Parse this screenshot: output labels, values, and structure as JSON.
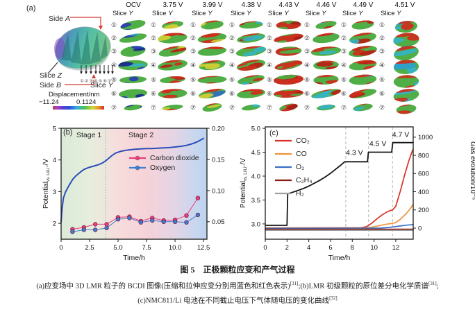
{
  "panel_a": {
    "label": "(a)",
    "side_prefix": "Side",
    "side_a_axis": "A",
    "side_b_axis": "B",
    "slice_prefix": "Slice",
    "slice_z_axis": "Z",
    "slice_y_axis": "Y",
    "displacement_label": "Displacement/nm",
    "colorbar": {
      "min": "−11.24",
      "max": "0.1124"
    },
    "row_markers": [
      "①",
      "②",
      "③",
      "④",
      "⑤",
      "⑥",
      "⑦"
    ],
    "columns": [
      {
        "voltage": "OCV",
        "base": "#4fae45",
        "patches": [
          "#2b3db4",
          "#18268e",
          "#35b3c6",
          "#2b3db4"
        ]
      },
      {
        "voltage": "3.75 V",
        "base": "#4fae45",
        "patches": [
          "#cf2c1c",
          "#b92013",
          "#d2cf35"
        ]
      },
      {
        "voltage": "3.99 V",
        "base": "#4fae45",
        "patches": [
          "#cf2c1c",
          "#2b6fc0",
          "#d2cf35"
        ]
      },
      {
        "voltage": "4.38 V",
        "base": "#4fae45",
        "patches": [
          "#cf2c1c",
          "#35b3c6",
          "#b92013"
        ]
      },
      {
        "voltage": "4.43 V",
        "base": "#c8301f",
        "patches": [
          "#4fae45",
          "#a31d12",
          "#cf2c1c"
        ]
      },
      {
        "voltage": "4.46 V",
        "base": "#4fae45",
        "patches": [
          "#cf2c1c",
          "#35b3c6",
          "#b92013"
        ]
      },
      {
        "voltage": "4.49 V",
        "base": "#4fae45",
        "patches": [
          "#cf2c1c",
          "#b92013",
          "#35b3c6"
        ]
      },
      {
        "voltage": "4.51 V",
        "base": "#4fae45",
        "patches": [
          "#cf2c1c",
          "#35b3c6",
          "#2b9fd0"
        ]
      }
    ]
  },
  "panel_b": {
    "label": "(b)",
    "stage1": "Stage 1",
    "stage2": "Stage 2",
    "xlabel": "Time/h",
    "ylabel_main": "Potential",
    "ylabel_sub": "vs. Li/Li⁺",
    "ylabel_unit": "/V",
    "divider_color": "#8fd8dc",
    "legend": [
      {
        "label": "Carbon dioxide",
        "color": "#e8417e"
      },
      {
        "label": "Oxygen",
        "color": "#3f7fd2"
      }
    ]
  },
  "panel_c": {
    "label": "(c)",
    "xlabel": "Time/h",
    "ylabel_main": "Potential",
    "ylabel_sub": "vs. Li/Li⁺",
    "ylabel_unit": "/V",
    "ylabel_right": "Gas evolution/10⁻⁶",
    "legend": [
      {
        "label": "CO₂",
        "color": "#d93025"
      },
      {
        "label": "CO",
        "color": "#f0913a"
      },
      {
        "label": "O₂",
        "color": "#3a6fc4"
      },
      {
        "label": "C₂H₄",
        "color": "#8b1a10"
      },
      {
        "label": "H₂",
        "color": "#9e9e9e"
      }
    ]
  },
  "chart_data": [
    {
      "id": "b",
      "type": "line",
      "xlabel": "Time/h",
      "xlim": [
        0,
        12.8
      ],
      "x_ticks": [
        0,
        2.5,
        5,
        7.5,
        10,
        12.5
      ],
      "x_tick_labels": [
        "0",
        "2.5",
        "5.0",
        "7.5",
        "10.0",
        "12.5"
      ],
      "ylim_left": [
        1.5,
        5
      ],
      "yleft_ticks": [
        2,
        3,
        4,
        5
      ],
      "yleft_tick_labels": [
        "2",
        "3",
        "4",
        "5"
      ],
      "ylim_right": [
        0.022,
        0.2
      ],
      "yright_ticks": [
        0.05,
        0.1,
        0.15,
        0.2
      ],
      "yright_tick_labels": [
        "0.05",
        "0.10",
        "0.15",
        "0.20"
      ],
      "stage_divider_x": 3.9,
      "legend_position": "center-right",
      "series": [
        {
          "name": "Potential",
          "axis": "left",
          "color": "#2b4db8",
          "width": 2,
          "marker": false,
          "x": [
            0,
            0.08,
            0.2,
            0.4,
            0.7,
            1,
            1.3,
            1.7,
            2,
            2.4,
            2.8,
            3.2,
            3.6,
            3.9,
            4.2,
            4.5,
            4.8,
            5.2,
            5.6,
            6,
            6.5,
            7,
            7.5,
            8,
            8.5,
            9,
            9.5,
            10,
            10.5,
            11,
            11.4,
            11.8,
            12.1,
            12.5
          ],
          "y": [
            2.05,
            2.45,
            2.8,
            3.0,
            3.2,
            3.38,
            3.5,
            3.62,
            3.7,
            3.76,
            3.8,
            3.84,
            3.9,
            3.97,
            4.06,
            4.15,
            4.22,
            4.27,
            4.3,
            4.32,
            4.34,
            4.35,
            4.36,
            4.36,
            4.37,
            4.38,
            4.39,
            4.41,
            4.43,
            4.46,
            4.5,
            4.55,
            4.6,
            4.68
          ]
        },
        {
          "name": "Carbon dioxide",
          "axis": "right",
          "color": "#e8417e",
          "width": 1,
          "marker": true,
          "x": [
            1,
            2,
            3,
            4,
            5,
            6,
            7,
            8,
            9,
            10,
            11,
            12
          ],
          "y": [
            0.038,
            0.041,
            0.046,
            0.046,
            0.057,
            0.058,
            0.051,
            0.056,
            0.052,
            0.053,
            0.06,
            0.088
          ]
        },
        {
          "name": "Oxygen",
          "axis": "right",
          "color": "#3f7fd2",
          "width": 1,
          "marker": true,
          "x": [
            1,
            2,
            3,
            4,
            5,
            6,
            7,
            8,
            9,
            10,
            11,
            12
          ],
          "y": [
            0.034,
            0.037,
            0.037,
            0.04,
            0.054,
            0.056,
            0.049,
            0.052,
            0.05,
            0.05,
            0.049,
            0.061
          ]
        }
      ]
    },
    {
      "id": "c",
      "type": "line",
      "xlabel": "Time/h",
      "xlim": [
        0,
        13.6
      ],
      "x_ticks": [
        0,
        2,
        4,
        6,
        8,
        10,
        12
      ],
      "x_tick_labels": [
        "0",
        "2",
        "4",
        "6",
        "8",
        "10",
        "12"
      ],
      "ylim_left": [
        2.68,
        5.03
      ],
      "yleft_ticks": [
        3,
        3.5,
        4,
        4.5,
        5
      ],
      "yleft_tick_labels": [
        "3.0",
        "3.5",
        "4.0",
        "4.5",
        "5.0"
      ],
      "ylim_right": [
        -122,
        1113
      ],
      "yright_ticks": [
        0,
        200,
        400,
        600,
        800,
        1000
      ],
      "yright_tick_labels": [
        "0",
        "200",
        "400",
        "600",
        "800",
        "1000"
      ],
      "dashed_x": [
        7.4,
        9.5,
        11.7
      ],
      "annotations": [
        {
          "text": "4.3 V",
          "x": 8.2,
          "y": 4.44
        },
        {
          "text": "4.5 V",
          "x": 10.35,
          "y": 4.63
        },
        {
          "text": "4.7 V",
          "x": 12.45,
          "y": 4.82
        }
      ],
      "series": [
        {
          "name": "Potential",
          "axis": "left",
          "color": "#141414",
          "width": 1.8,
          "marker": false,
          "x": [
            0,
            2,
            2.06,
            2.5,
            3,
            3.5,
            4,
            4.5,
            5,
            5.5,
            6,
            6.5,
            7,
            7.3,
            9.4,
            9.48,
            11.62,
            11.72,
            13.6
          ],
          "y": [
            2.97,
            2.97,
            3.63,
            3.66,
            3.7,
            3.74,
            3.79,
            3.85,
            3.91,
            3.98,
            4.06,
            4.15,
            4.24,
            4.3,
            4.3,
            4.5,
            4.5,
            4.7,
            4.7
          ]
        },
        {
          "name": "CO₂",
          "axis": "right",
          "color": "#d93025",
          "width": 1.7,
          "marker": false,
          "x": [
            0,
            8.8,
            9.3,
            9.8,
            10.3,
            10.8,
            11.3,
            11.7,
            12,
            12.4,
            12.8,
            13.2,
            13.5,
            13.6
          ],
          "y": [
            2,
            4,
            15,
            55,
            105,
            150,
            185,
            200,
            240,
            400,
            580,
            740,
            840,
            870
          ]
        },
        {
          "name": "CO",
          "axis": "right",
          "color": "#f0913a",
          "width": 1.7,
          "marker": false,
          "x": [
            0,
            9.4,
            10.2,
            11,
            11.7,
            12,
            12.5,
            13,
            13.4,
            13.6
          ],
          "y": [
            0,
            3,
            20,
            40,
            52,
            60,
            105,
            165,
            225,
            260
          ]
        },
        {
          "name": "O₂",
          "axis": "right",
          "color": "#3a6fc4",
          "width": 1.7,
          "marker": false,
          "x": [
            0,
            10.6,
            11.5,
            12.3,
            13,
            13.6
          ],
          "y": [
            -2,
            0,
            8,
            22,
            33,
            38
          ]
        },
        {
          "name": "C₂H₄",
          "axis": "right",
          "color": "#8b1a10",
          "width": 1.7,
          "marker": false,
          "x": [
            0,
            13.6
          ],
          "y": [
            -12,
            -12
          ]
        },
        {
          "name": "H₂",
          "axis": "right",
          "color": "#9e9e9e",
          "width": 1.7,
          "marker": false,
          "x": [
            0,
            13.6
          ],
          "y": [
            -24,
            -24
          ]
        }
      ]
    }
  ],
  "caption": {
    "line1": "图 5　正极颗粒应变和产气过程",
    "line2_segments": [
      {
        "text": "(a)应变场中 3D LMR 粒子的 BCDI 图像(压缩和拉伸应变分别用蓝色和红色表示)",
        "sup": false
      },
      {
        "text": "[31]",
        "sup": true
      },
      {
        "text": ";(b)LMR 初级颗粒的原位差分电化学质谱",
        "sup": false
      },
      {
        "text": "[31]",
        "sup": true
      },
      {
        "text": ";",
        "sup": false
      }
    ],
    "line3_segments": [
      {
        "text": "(c)NMC811/Li 电池在不同截止电压下气体随电压的变化曲线",
        "sup": false
      },
      {
        "text": "[32]",
        "sup": true
      }
    ]
  }
}
